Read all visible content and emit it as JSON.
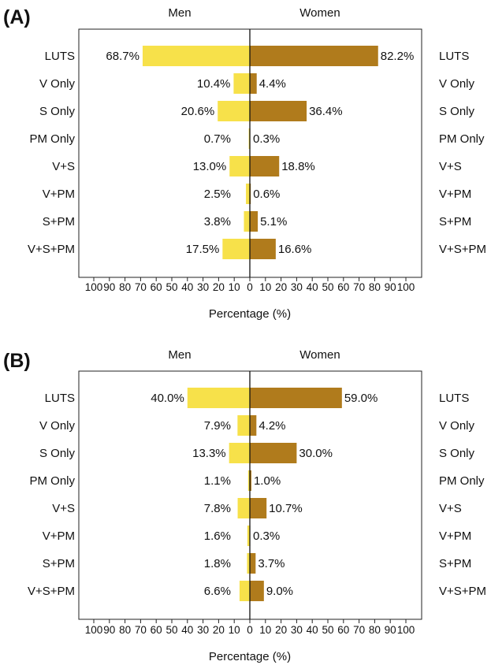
{
  "colors": {
    "men": "#f7e14a",
    "women": "#b07b1c"
  },
  "chart_data": [
    {
      "type": "bar",
      "panel_label": "(A)",
      "left_header": "Men",
      "right_header": "Women",
      "xlabel": "Percentage (%)",
      "xlim": [
        -100,
        100
      ],
      "x_ticks": [
        "100",
        "90",
        "80",
        "70",
        "60",
        "50",
        "40",
        "30",
        "20",
        "10",
        "0",
        "10",
        "20",
        "30",
        "40",
        "50",
        "60",
        "70",
        "80",
        "90",
        "100"
      ],
      "categories": [
        "LUTS",
        "V Only",
        "S Only",
        "PM Only",
        "V+S",
        "V+PM",
        "S+PM",
        "V+S+PM"
      ],
      "series": [
        {
          "name": "Men",
          "values": [
            68.7,
            10.4,
            20.6,
            0.7,
            13.0,
            2.5,
            3.8,
            17.5
          ],
          "labels": [
            "68.7%",
            "10.4%",
            "20.6%",
            "0.7%",
            "13.0%",
            "2.5%",
            "3.8%",
            "17.5%"
          ]
        },
        {
          "name": "Women",
          "values": [
            82.2,
            4.4,
            36.4,
            0.3,
            18.8,
            0.6,
            5.1,
            16.6
          ],
          "labels": [
            "82.2%",
            "4.4%",
            "36.4%",
            "0.3%",
            "18.8%",
            "0.6%",
            "5.1%",
            "16.6%"
          ]
        }
      ]
    },
    {
      "type": "bar",
      "panel_label": "(B)",
      "left_header": "Men",
      "right_header": "Women",
      "xlabel": "Percentage (%)",
      "xlim": [
        -100,
        100
      ],
      "x_ticks": [
        "100",
        "90",
        "80",
        "70",
        "60",
        "50",
        "40",
        "30",
        "20",
        "10",
        "0",
        "10",
        "20",
        "30",
        "40",
        "50",
        "60",
        "70",
        "80",
        "90",
        "100"
      ],
      "categories": [
        "LUTS",
        "V Only",
        "S Only",
        "PM Only",
        "V+S",
        "V+PM",
        "S+PM",
        "V+S+PM"
      ],
      "series": [
        {
          "name": "Men",
          "values": [
            40.0,
            7.9,
            13.3,
            1.1,
            7.8,
            1.6,
            1.8,
            6.6
          ],
          "labels": [
            "40.0%",
            "7.9%",
            "13.3%",
            "1.1%",
            "7.8%",
            "1.6%",
            "1.8%",
            "6.6%"
          ]
        },
        {
          "name": "Women",
          "values": [
            59.0,
            4.2,
            30.0,
            1.0,
            10.7,
            0.3,
            3.7,
            9.0
          ],
          "labels": [
            "59.0%",
            "4.2%",
            "30.0%",
            "1.0%",
            "10.7%",
            "0.3%",
            "3.7%",
            "9.0%"
          ]
        }
      ]
    }
  ]
}
